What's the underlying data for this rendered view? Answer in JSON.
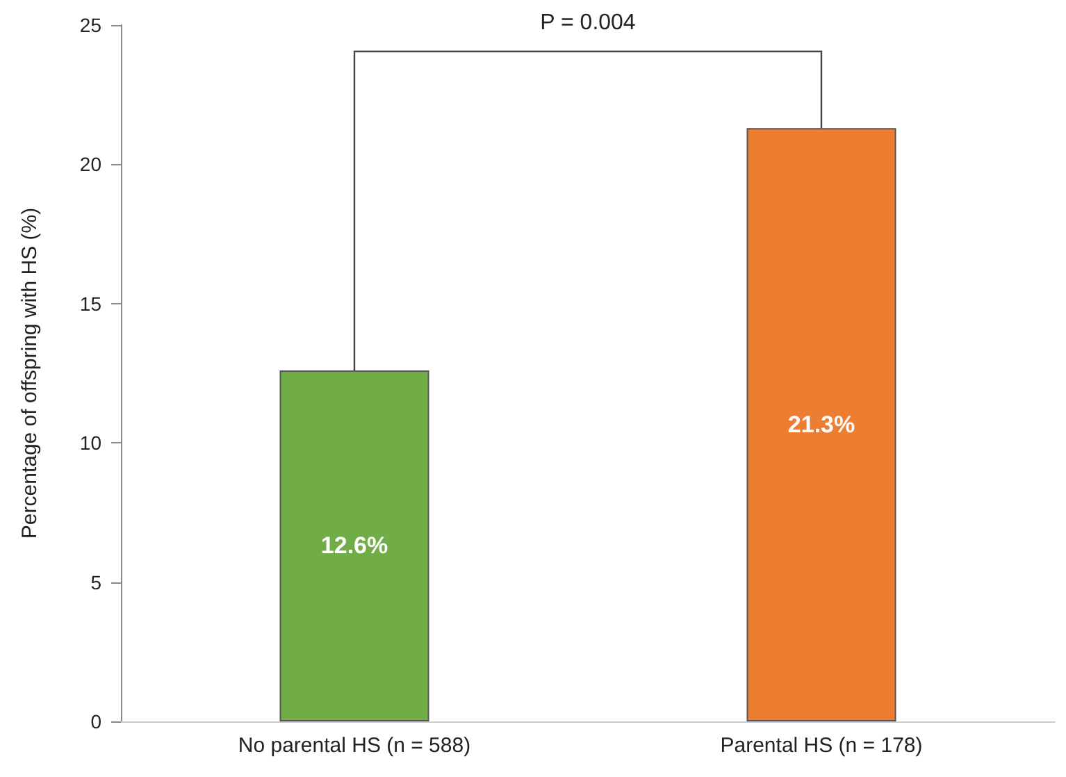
{
  "chart_data": {
    "type": "bar",
    "ylabel": "Percentage of offspring with HS (%)",
    "categories": [
      "No parental HS (n = 588)",
      "Parental HS (n = 178)"
    ],
    "values": [
      12.6,
      21.3
    ],
    "colors": [
      "#70ad47",
      "#ed7d31"
    ],
    "value_labels": [
      "12.6%",
      "21.3%"
    ],
    "ylim": [
      0,
      25
    ],
    "yticks": [
      0,
      5,
      10,
      15,
      20,
      25
    ],
    "grid": false,
    "annotations": [
      "P = 0.004"
    ]
  }
}
